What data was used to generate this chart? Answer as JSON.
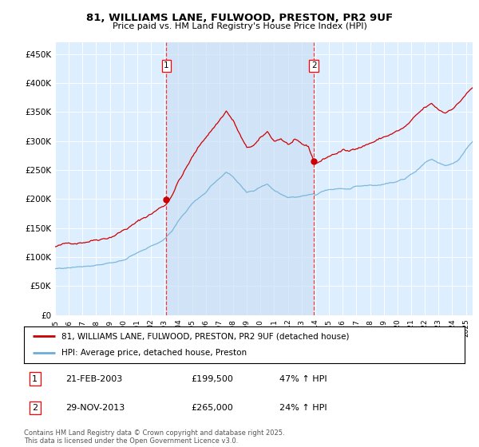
{
  "title1": "81, WILLIAMS LANE, FULWOOD, PRESTON, PR2 9UF",
  "title2": "Price paid vs. HM Land Registry's House Price Index (HPI)",
  "ylabel_ticks": [
    "£0",
    "£50K",
    "£100K",
    "£150K",
    "£200K",
    "£250K",
    "£300K",
    "£350K",
    "£400K",
    "£450K"
  ],
  "ytick_values": [
    0,
    50000,
    100000,
    150000,
    200000,
    250000,
    300000,
    350000,
    400000,
    450000
  ],
  "ylim": [
    0,
    470000
  ],
  "xlim_start": 1995.0,
  "xlim_end": 2025.5,
  "transaction1": {
    "date_num": 2003.13,
    "price": 199500,
    "label": "1",
    "pct": "47%",
    "date_str": "21-FEB-2003"
  },
  "transaction2": {
    "date_num": 2013.91,
    "price": 265000,
    "label": "2",
    "pct": "24%",
    "date_str": "29-NOV-2013"
  },
  "hpi_color": "#6baed6",
  "price_color": "#cc0000",
  "background_color": "#ddeeff",
  "shade_color": "#cce0f5",
  "legend1": "81, WILLIAMS LANE, FULWOOD, PRESTON, PR2 9UF (detached house)",
  "legend2": "HPI: Average price, detached house, Preston",
  "footer": "Contains HM Land Registry data © Crown copyright and database right 2025.\nThis data is licensed under the Open Government Licence v3.0."
}
